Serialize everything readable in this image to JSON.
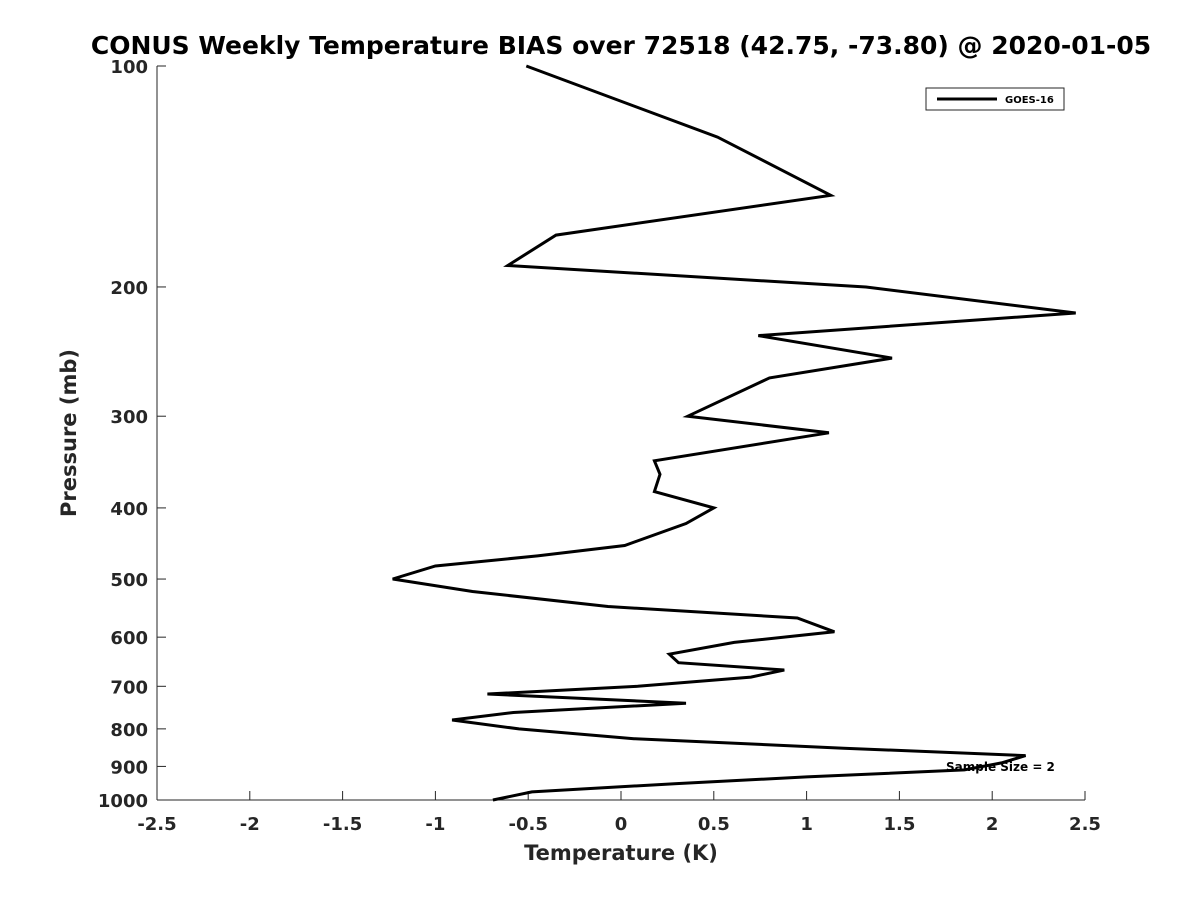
{
  "chart_data": {
    "type": "line",
    "title": "CONUS Weekly Temperature BIAS over 72518 (42.75, -73.80) @ 2020-01-05",
    "xlabel": "Temperature (K)",
    "ylabel": "Pressure (mb)",
    "xlim": [
      -2.5,
      2.5
    ],
    "ylim": [
      1000,
      100
    ],
    "y_scale": "log",
    "y_reversed": true,
    "x_ticks": [
      -2.5,
      -2,
      -1.5,
      -1,
      -0.5,
      0,
      0.5,
      1,
      1.5,
      2,
      2.5
    ],
    "x_tick_labels": [
      "-2.5",
      "-2",
      "-1.5",
      "-1",
      "-0.5",
      "0",
      "0.5",
      "1",
      "1.5",
      "2",
      "2.5"
    ],
    "y_ticks": [
      100,
      200,
      300,
      400,
      500,
      600,
      700,
      800,
      900,
      1000
    ],
    "y_tick_labels": [
      "100",
      "200",
      "300",
      "400",
      "500",
      "600",
      "700",
      "800",
      "900",
      "1000"
    ],
    "grid": false,
    "legend_position": "top-right",
    "line_color": "#000000",
    "series": [
      {
        "name": "GOES-16",
        "points": [
          {
            "x": -0.51,
            "y": 100
          },
          {
            "x": 0.52,
            "y": 125
          },
          {
            "x": 1.13,
            "y": 150
          },
          {
            "x": -0.35,
            "y": 170
          },
          {
            "x": -0.61,
            "y": 187
          },
          {
            "x": 1.32,
            "y": 200
          },
          {
            "x": 2.45,
            "y": 217
          },
          {
            "x": 0.74,
            "y": 233
          },
          {
            "x": 1.46,
            "y": 250
          },
          {
            "x": 0.8,
            "y": 266
          },
          {
            "x": 0.36,
            "y": 300
          },
          {
            "x": 1.12,
            "y": 316
          },
          {
            "x": 0.18,
            "y": 345
          },
          {
            "x": 0.21,
            "y": 360
          },
          {
            "x": 0.18,
            "y": 380
          },
          {
            "x": 0.5,
            "y": 400
          },
          {
            "x": 0.35,
            "y": 420
          },
          {
            "x": 0.02,
            "y": 450
          },
          {
            "x": -0.45,
            "y": 465
          },
          {
            "x": -1.0,
            "y": 480
          },
          {
            "x": -1.23,
            "y": 500
          },
          {
            "x": -0.8,
            "y": 520
          },
          {
            "x": -0.07,
            "y": 545
          },
          {
            "x": 0.95,
            "y": 565
          },
          {
            "x": 1.15,
            "y": 590
          },
          {
            "x": 0.61,
            "y": 610
          },
          {
            "x": 0.26,
            "y": 633
          },
          {
            "x": 0.31,
            "y": 650
          },
          {
            "x": 0.88,
            "y": 665
          },
          {
            "x": 0.7,
            "y": 680
          },
          {
            "x": 0.09,
            "y": 700
          },
          {
            "x": -0.72,
            "y": 717
          },
          {
            "x": 0.35,
            "y": 738
          },
          {
            "x": -0.58,
            "y": 760
          },
          {
            "x": -0.91,
            "y": 778
          },
          {
            "x": -0.55,
            "y": 800
          },
          {
            "x": 0.07,
            "y": 825
          },
          {
            "x": 1.2,
            "y": 850
          },
          {
            "x": 2.18,
            "y": 870
          },
          {
            "x": 2.05,
            "y": 890
          },
          {
            "x": 1.85,
            "y": 910
          },
          {
            "x": 1.0,
            "y": 930
          },
          {
            "x": 0.3,
            "y": 950
          },
          {
            "x": -0.48,
            "y": 975
          },
          {
            "x": -0.69,
            "y": 1000
          }
        ]
      }
    ],
    "annotations": [
      {
        "text": "Sample Size = 2",
        "x": 1.75,
        "y": 900
      }
    ]
  }
}
